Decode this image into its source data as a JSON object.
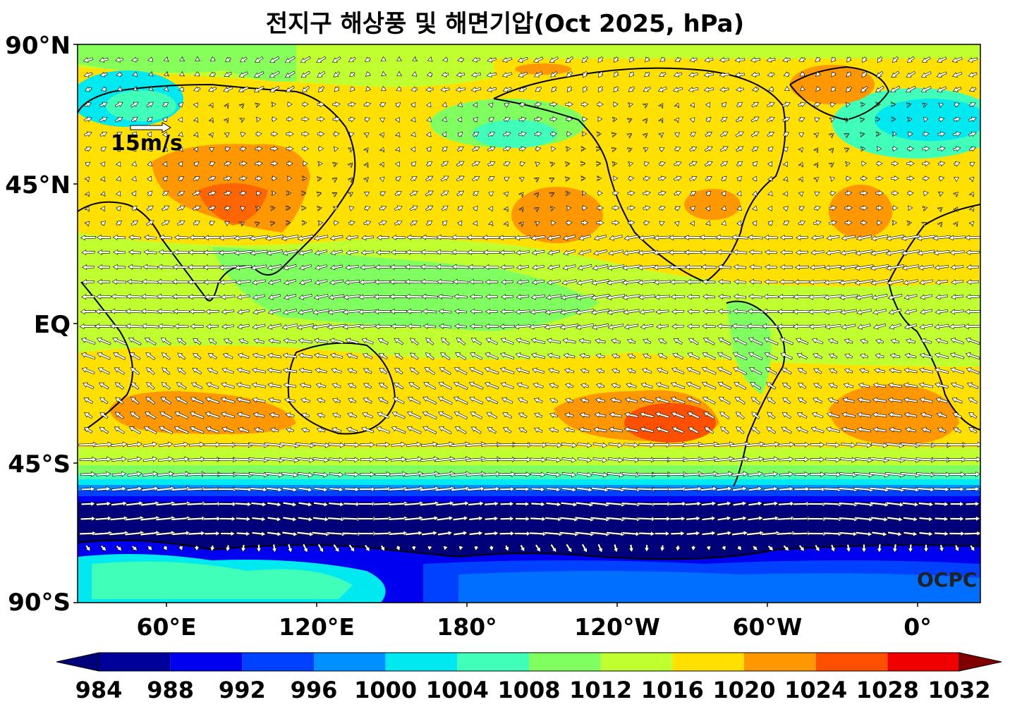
{
  "title": "전지구 해상풍 및 해면기압(Oct 2025, hPa)",
  "y_axis_labels": [
    "90°N",
    "45°N",
    "EQ",
    "45°S",
    "90°S"
  ],
  "x_axis_labels": [
    "60°E",
    "120°E",
    "180°",
    "120°W",
    "60°W",
    "0°"
  ],
  "reference_vector": {
    "label": "15m/s",
    "speed_ms": 15
  },
  "credit": "OCPC",
  "colorbar": {
    "levels": [
      "984",
      "988",
      "992",
      "996",
      "1000",
      "1004",
      "1008",
      "1012",
      "1016",
      "1020",
      "1024",
      "1028",
      "1032"
    ],
    "colors": [
      "#00007a",
      "#00009a",
      "#0000f0",
      "#0040ff",
      "#0090ff",
      "#00e8f0",
      "#40ffb8",
      "#80ff60",
      "#c0ff30",
      "#ffe000",
      "#ff9800",
      "#ff5000",
      "#f00000",
      "#800000"
    ]
  }
}
